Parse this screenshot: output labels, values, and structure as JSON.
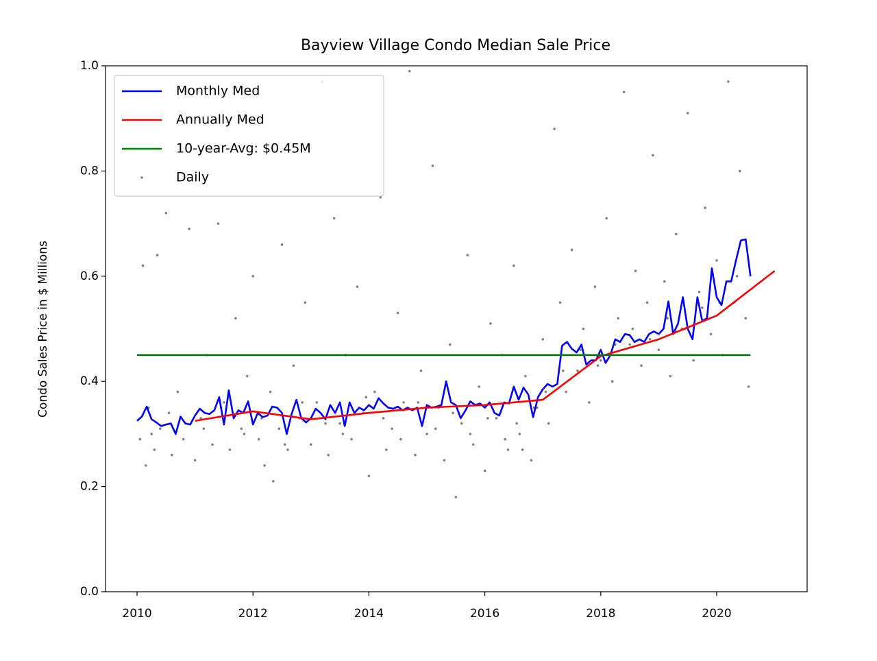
{
  "chart_data": {
    "type": "line",
    "title": "Bayview Village Condo Median Sale Price",
    "y_label": "Condo Sales Price in $ Millions",
    "xlim": [
      2009.456,
      2021.56
    ],
    "ylim": [
      0,
      1
    ],
    "xticks": [
      2010,
      2012,
      2014,
      2016,
      2018,
      2020
    ],
    "yticks": [
      {
        "value": 0,
        "label": "0.0"
      },
      0.2,
      0.4,
      0.6,
      0.8,
      {
        "value": 1,
        "label": "1.0"
      }
    ],
    "legend": "upper left",
    "series": [
      {
        "name": "Daily",
        "type": "scatter",
        "color": "#808080",
        "x": [
          2010.05,
          2010.1,
          2010.15,
          2010.2,
          2010.3,
          2010.35,
          2010.4,
          2010.5,
          2010.6,
          2010.7,
          2010.8,
          2010.9,
          2011.0,
          2011.1,
          2011.2,
          2011.3,
          2011.4,
          2011.5,
          2011.6,
          2011.7,
          2011.8,
          2011.9,
          2012.0,
          2012.1,
          2012.2,
          2012.3,
          2012.35,
          2012.45,
          2012.5,
          2012.6,
          2012.7,
          2012.8,
          2012.9,
          2013.0,
          2013.1,
          2013.2,
          2013.3,
          2013.4,
          2013.5,
          2013.6,
          2013.7,
          2013.8,
          2013.9,
          2014.0,
          2014.1,
          2014.2,
          2014.3,
          2014.4,
          2014.5,
          2014.6,
          2014.7,
          2014.8,
          2014.9,
          2015.0,
          2015.1,
          2015.2,
          2015.3,
          2015.4,
          2015.5,
          2015.6,
          2015.7,
          2015.8,
          2015.9,
          2016.0,
          2016.1,
          2016.2,
          2016.3,
          2016.4,
          2016.5,
          2016.6,
          2016.7,
          2016.8,
          2016.9,
          2017.0,
          2017.1,
          2017.2,
          2017.3,
          2017.4,
          2017.5,
          2017.6,
          2017.7,
          2017.8,
          2017.9,
          2018.0,
          2018.1,
          2018.2,
          2018.3,
          2018.4,
          2018.5,
          2018.6,
          2018.7,
          2018.8,
          2018.9,
          2019.0,
          2019.1,
          2019.2,
          2019.3,
          2019.4,
          2019.5,
          2019.6,
          2019.7,
          2019.8,
          2019.9,
          2020.0,
          2020.1,
          2020.2,
          2020.3,
          2020.4,
          2020.5,
          2020.55,
          2010.25,
          2010.55,
          2011.15,
          2011.45,
          2011.85,
          2012.15,
          2012.55,
          2012.85,
          2013.25,
          2013.55,
          2013.95,
          2014.25,
          2014.55,
          2014.85,
          2015.15,
          2015.45,
          2015.75,
          2016.05,
          2016.35,
          2016.55,
          2016.65,
          2016.85,
          2017.05,
          2017.35,
          2017.65,
          2017.95,
          2018.25,
          2018.55,
          2018.85,
          2019.15,
          2019.45,
          2019.75,
          2020.05,
          2020.35
        ],
        "values": [
          0.29,
          0.62,
          0.24,
          0.35,
          0.27,
          0.64,
          0.31,
          0.72,
          0.26,
          0.38,
          0.29,
          0.69,
          0.25,
          0.33,
          0.45,
          0.28,
          0.7,
          0.36,
          0.27,
          0.52,
          0.31,
          0.41,
          0.6,
          0.29,
          0.24,
          0.38,
          0.21,
          0.31,
          0.66,
          0.27,
          0.43,
          0.33,
          0.55,
          0.28,
          0.36,
          0.97,
          0.26,
          0.71,
          0.32,
          0.45,
          0.29,
          0.58,
          0.34,
          0.22,
          0.38,
          0.75,
          0.27,
          0.31,
          0.53,
          0.36,
          0.99,
          0.26,
          0.42,
          0.3,
          0.81,
          0.35,
          0.25,
          0.47,
          0.18,
          0.32,
          0.64,
          0.28,
          0.39,
          0.23,
          0.51,
          0.33,
          0.45,
          0.27,
          0.62,
          0.3,
          0.41,
          0.25,
          0.35,
          0.48,
          0.32,
          0.88,
          0.55,
          0.38,
          0.65,
          0.42,
          0.5,
          0.36,
          0.58,
          0.44,
          0.71,
          0.4,
          0.52,
          0.95,
          0.47,
          0.61,
          0.43,
          0.55,
          0.83,
          0.46,
          0.59,
          0.41,
          0.68,
          0.5,
          0.91,
          0.44,
          0.57,
          0.73,
          0.49,
          0.63,
          0.45,
          0.97,
          0.55,
          0.8,
          0.52,
          0.39,
          0.3,
          0.34,
          0.31,
          0.35,
          0.3,
          0.33,
          0.28,
          0.36,
          0.32,
          0.3,
          0.37,
          0.33,
          0.29,
          0.36,
          0.31,
          0.34,
          0.3,
          0.33,
          0.29,
          0.32,
          0.27,
          0.35,
          0.38,
          0.42,
          0.46,
          0.43,
          0.47,
          0.5,
          0.48,
          0.52,
          0.5,
          0.54,
          0.55,
          0.6
        ]
      },
      {
        "name": "Monthly Med",
        "type": "line",
        "color": "#0000ff",
        "x": [
          2010,
          2010.083,
          2010.167,
          2010.25,
          2010.333,
          2010.417,
          2010.5,
          2010.583,
          2010.667,
          2010.75,
          2010.833,
          2010.917,
          2011,
          2011.083,
          2011.167,
          2011.25,
          2011.333,
          2011.417,
          2011.5,
          2011.583,
          2011.667,
          2011.75,
          2011.833,
          2011.917,
          2012,
          2012.083,
          2012.167,
          2012.25,
          2012.333,
          2012.417,
          2012.5,
          2012.583,
          2012.667,
          2012.75,
          2012.833,
          2012.917,
          2013,
          2013.083,
          2013.167,
          2013.25,
          2013.333,
          2013.417,
          2013.5,
          2013.583,
          2013.667,
          2013.75,
          2013.833,
          2013.917,
          2014,
          2014.083,
          2014.167,
          2014.25,
          2014.333,
          2014.417,
          2014.5,
          2014.583,
          2014.667,
          2014.75,
          2014.833,
          2014.917,
          2015,
          2015.083,
          2015.167,
          2015.25,
          2015.333,
          2015.417,
          2015.5,
          2015.583,
          2015.667,
          2015.75,
          2015.833,
          2015.917,
          2016,
          2016.083,
          2016.167,
          2016.25,
          2016.333,
          2016.417,
          2016.5,
          2016.583,
          2016.667,
          2016.75,
          2016.833,
          2016.917,
          2017,
          2017.083,
          2017.167,
          2017.25,
          2017.333,
          2017.417,
          2017.5,
          2017.583,
          2017.667,
          2017.75,
          2017.833,
          2017.917,
          2018,
          2018.083,
          2018.167,
          2018.25,
          2018.333,
          2018.417,
          2018.5,
          2018.583,
          2018.667,
          2018.75,
          2018.833,
          2018.917,
          2019,
          2019.083,
          2019.167,
          2019.25,
          2019.333,
          2019.417,
          2019.5,
          2019.583,
          2019.667,
          2019.75,
          2019.833,
          2019.917,
          2020,
          2020.083,
          2020.167,
          2020.25,
          2020.333,
          2020.417,
          2020.5,
          2020.583
        ],
        "values": [
          0.325,
          0.333,
          0.352,
          0.328,
          0.322,
          0.315,
          0.318,
          0.32,
          0.3,
          0.333,
          0.32,
          0.318,
          0.335,
          0.348,
          0.34,
          0.338,
          0.345,
          0.37,
          0.318,
          0.383,
          0.33,
          0.345,
          0.34,
          0.362,
          0.318,
          0.34,
          0.332,
          0.335,
          0.352,
          0.35,
          0.34,
          0.3,
          0.338,
          0.365,
          0.33,
          0.322,
          0.33,
          0.348,
          0.34,
          0.328,
          0.355,
          0.34,
          0.36,
          0.315,
          0.36,
          0.34,
          0.35,
          0.345,
          0.355,
          0.348,
          0.368,
          0.358,
          0.35,
          0.348,
          0.352,
          0.345,
          0.35,
          0.345,
          0.35,
          0.315,
          0.355,
          0.35,
          0.352,
          0.355,
          0.4,
          0.36,
          0.355,
          0.33,
          0.345,
          0.362,
          0.355,
          0.358,
          0.35,
          0.36,
          0.34,
          0.335,
          0.36,
          0.358,
          0.39,
          0.365,
          0.388,
          0.375,
          0.332,
          0.37,
          0.385,
          0.395,
          0.39,
          0.395,
          0.468,
          0.475,
          0.462,
          0.455,
          0.47,
          0.432,
          0.44,
          0.44,
          0.46,
          0.435,
          0.45,
          0.48,
          0.475,
          0.49,
          0.488,
          0.475,
          0.48,
          0.475,
          0.49,
          0.495,
          0.49,
          0.5,
          0.552,
          0.49,
          0.51,
          0.56,
          0.5,
          0.48,
          0.56,
          0.515,
          0.52,
          0.615,
          0.56,
          0.545,
          0.59,
          0.59,
          0.63,
          0.668,
          0.67,
          0.6
        ]
      },
      {
        "name": "Annually Med",
        "type": "line",
        "color": "#ff0000",
        "x": [
          2011,
          2012,
          2013,
          2014,
          2015,
          2016,
          2017,
          2018,
          2019,
          2020,
          2021
        ],
        "values": [
          0.325,
          0.343,
          0.328,
          0.34,
          0.35,
          0.355,
          0.365,
          0.448,
          0.48,
          0.525,
          0.61
        ]
      },
      {
        "name": "10-year-Avg: $0.45M",
        "type": "line",
        "color": "#008000",
        "x": [
          2010,
          2020.583
        ],
        "values": [
          0.45,
          0.45
        ]
      }
    ]
  }
}
